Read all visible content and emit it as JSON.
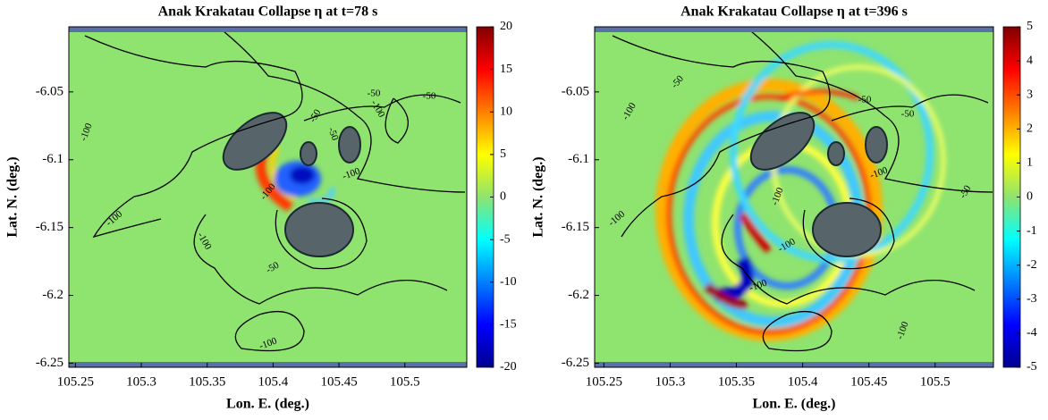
{
  "chart_data": [
    {
      "type": "heatmap",
      "title": "Anak Krakatau Collapse η at t=78 s",
      "x_label": "Lon. E. (deg.)",
      "y_label": "Lat. N. (deg.)",
      "xlim": [
        105.245,
        105.547
      ],
      "xticks": [
        105.25,
        105.3,
        105.35,
        105.4,
        105.45,
        105.5
      ],
      "ylim": [
        -6.253,
        -6.002
      ],
      "yticks": [
        -6.05,
        -6.1,
        -6.15,
        -6.2,
        -6.25
      ],
      "colorbar_lim": [
        -20,
        20
      ],
      "colorbar_ticks": [
        20,
        15,
        10,
        5,
        0,
        -5,
        -10,
        -15,
        -20
      ],
      "contour_labels": [
        -50,
        -50,
        -50,
        -100,
        -50,
        -100,
        -100,
        -100,
        -50,
        -100,
        -100,
        -100
      ]
    },
    {
      "type": "heatmap",
      "title": "Anak Krakatau Collapse η at t=396 s",
      "x_label": "Lon. E. (deg.)",
      "y_label": "Lat. N. (deg.)",
      "xlim": [
        105.243,
        105.544
      ],
      "xticks": [
        105.25,
        105.3,
        105.35,
        105.4,
        105.45,
        105.5
      ],
      "ylim": [
        -6.253,
        -6.002
      ],
      "yticks": [
        -6.05,
        -6.1,
        -6.15,
        -6.2,
        -6.25
      ],
      "colorbar_lim": [
        -5,
        5
      ],
      "colorbar_ticks": [
        5,
        4,
        3,
        2,
        1,
        0,
        -1,
        -2,
        -3,
        -4,
        -5
      ],
      "contour_labels": [
        -100,
        -50,
        -50,
        -50,
        -50,
        -100,
        -100,
        -100,
        -100,
        -100,
        -100
      ]
    }
  ]
}
